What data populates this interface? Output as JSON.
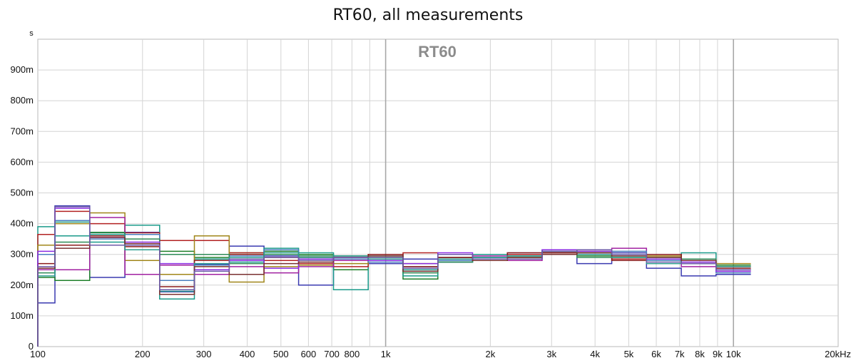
{
  "chart_data": {
    "type": "line",
    "title": "RT60, all measurements",
    "watermark": "RT60",
    "ylabel": "s",
    "xlabel": "",
    "xscale": "log",
    "xlim": [
      100,
      20000
    ],
    "ylim": [
      0,
      1.0
    ],
    "grid": true,
    "y_ticks": [
      {
        "value": 0,
        "label": "0"
      },
      {
        "value": 0.1,
        "label": "100m"
      },
      {
        "value": 0.2,
        "label": "200m"
      },
      {
        "value": 0.3,
        "label": "300m"
      },
      {
        "value": 0.4,
        "label": "400m"
      },
      {
        "value": 0.5,
        "label": "500m"
      },
      {
        "value": 0.6,
        "label": "600m"
      },
      {
        "value": 0.7,
        "label": "700m"
      },
      {
        "value": 0.8,
        "label": "800m"
      },
      {
        "value": 0.9,
        "label": "900m"
      }
    ],
    "x_ticks": [
      {
        "value": 100,
        "label": "100"
      },
      {
        "value": 200,
        "label": "200"
      },
      {
        "value": 300,
        "label": "300"
      },
      {
        "value": 400,
        "label": "400"
      },
      {
        "value": 500,
        "label": "500"
      },
      {
        "value": 600,
        "label": "600"
      },
      {
        "value": 700,
        "label": "700"
      },
      {
        "value": 800,
        "label": "800"
      },
      {
        "value": 1000,
        "label": "1k"
      },
      {
        "value": 2000,
        "label": "2k"
      },
      {
        "value": 3000,
        "label": "3k"
      },
      {
        "value": 4000,
        "label": "4k"
      },
      {
        "value": 5000,
        "label": "5k"
      },
      {
        "value": 6000,
        "label": "6k"
      },
      {
        "value": 7000,
        "label": "7k"
      },
      {
        "value": 8000,
        "label": "8k"
      },
      {
        "value": 9000,
        "label": "9k"
      },
      {
        "value": 10000,
        "label": "10k"
      },
      {
        "value": 20000,
        "label": "20kHz"
      }
    ],
    "x_minor_grid": [
      900
    ],
    "band_edges": [
      100,
      112,
      141,
      178,
      224,
      282,
      355,
      447,
      562,
      708,
      891,
      1122,
      1413,
      1778,
      2239,
      2818,
      3548,
      4467,
      5623,
      7079,
      8913,
      11220
    ],
    "series": [
      {
        "color": "#3a3ab0",
        "values": [
          0.142,
          0.458,
          0.225,
          0.372,
          0.178,
          0.268,
          0.327,
          0.295,
          0.2,
          0.285,
          0.27,
          0.285,
          0.275,
          0.28,
          0.295,
          0.315,
          0.27,
          0.305,
          0.255,
          0.23,
          0.235
        ]
      },
      {
        "color": "#1e7f2a",
        "values": [
          0.225,
          0.215,
          0.372,
          0.33,
          0.31,
          0.29,
          0.305,
          0.31,
          0.3,
          0.25,
          0.29,
          0.22,
          0.285,
          0.29,
          0.295,
          0.305,
          0.295,
          0.29,
          0.285,
          0.285,
          0.265
        ]
      },
      {
        "color": "#1a9a8a",
        "values": [
          0.39,
          0.36,
          0.34,
          0.395,
          0.155,
          0.285,
          0.275,
          0.32,
          0.305,
          0.185,
          0.295,
          0.23,
          0.275,
          0.3,
          0.3,
          0.31,
          0.305,
          0.3,
          0.28,
          0.305,
          0.25
        ]
      },
      {
        "color": "#b22222",
        "values": [
          0.365,
          0.44,
          0.4,
          0.37,
          0.345,
          0.345,
          0.305,
          0.28,
          0.27,
          0.26,
          0.3,
          0.305,
          0.29,
          0.28,
          0.3,
          0.305,
          0.305,
          0.285,
          0.295,
          0.27,
          0.26
        ]
      },
      {
        "color": "#a0861a",
        "values": [
          0.33,
          0.4,
          0.435,
          0.28,
          0.235,
          0.36,
          0.21,
          0.26,
          0.265,
          0.27,
          0.28,
          0.27,
          0.28,
          0.285,
          0.29,
          0.31,
          0.31,
          0.3,
          0.295,
          0.28,
          0.27
        ]
      },
      {
        "color": "#a020a0",
        "values": [
          0.25,
          0.25,
          0.42,
          0.235,
          0.265,
          0.235,
          0.26,
          0.24,
          0.26,
          0.28,
          0.285,
          0.25,
          0.3,
          0.295,
          0.28,
          0.31,
          0.315,
          0.32,
          0.28,
          0.26,
          0.245
        ]
      },
      {
        "color": "#4a7fbf",
        "values": [
          0.3,
          0.41,
          0.35,
          0.365,
          0.215,
          0.265,
          0.295,
          0.315,
          0.28,
          0.285,
          0.275,
          0.26,
          0.28,
          0.29,
          0.305,
          0.31,
          0.305,
          0.31,
          0.28,
          0.27,
          0.24
        ]
      },
      {
        "color": "#8b1a1a",
        "values": [
          0.27,
          0.33,
          0.36,
          0.325,
          0.195,
          0.28,
          0.3,
          0.29,
          0.29,
          0.295,
          0.3,
          0.26,
          0.29,
          0.285,
          0.305,
          0.305,
          0.3,
          0.28,
          0.3,
          0.28,
          0.255
        ]
      },
      {
        "color": "#2e8b57",
        "values": [
          0.24,
          0.34,
          0.37,
          0.35,
          0.3,
          0.3,
          0.27,
          0.3,
          0.295,
          0.295,
          0.28,
          0.24,
          0.275,
          0.285,
          0.29,
          0.3,
          0.29,
          0.295,
          0.29,
          0.285,
          0.25
        ]
      },
      {
        "color": "#8a2be2",
        "values": [
          0.31,
          0.45,
          0.355,
          0.34,
          0.27,
          0.25,
          0.28,
          0.255,
          0.285,
          0.29,
          0.28,
          0.27,
          0.305,
          0.28,
          0.285,
          0.315,
          0.31,
          0.3,
          0.285,
          0.275,
          0.245
        ]
      },
      {
        "color": "#2a9d8f",
        "values": [
          0.23,
          0.405,
          0.365,
          0.315,
          0.18,
          0.27,
          0.29,
          0.305,
          0.29,
          0.295,
          0.285,
          0.25,
          0.285,
          0.29,
          0.295,
          0.31,
          0.3,
          0.29,
          0.27,
          0.28,
          0.26
        ]
      },
      {
        "color": "#7a3030",
        "values": [
          0.255,
          0.32,
          0.355,
          0.335,
          0.17,
          0.26,
          0.235,
          0.27,
          0.275,
          0.29,
          0.295,
          0.245,
          0.29,
          0.28,
          0.29,
          0.3,
          0.305,
          0.295,
          0.29,
          0.28,
          0.25
        ]
      },
      {
        "color": "#6d5aa8",
        "values": [
          0.26,
          0.455,
          0.33,
          0.33,
          0.185,
          0.245,
          0.285,
          0.29,
          0.28,
          0.29,
          0.29,
          0.255,
          0.3,
          0.285,
          0.285,
          0.31,
          0.315,
          0.3,
          0.275,
          0.27,
          0.25
        ]
      }
    ]
  }
}
